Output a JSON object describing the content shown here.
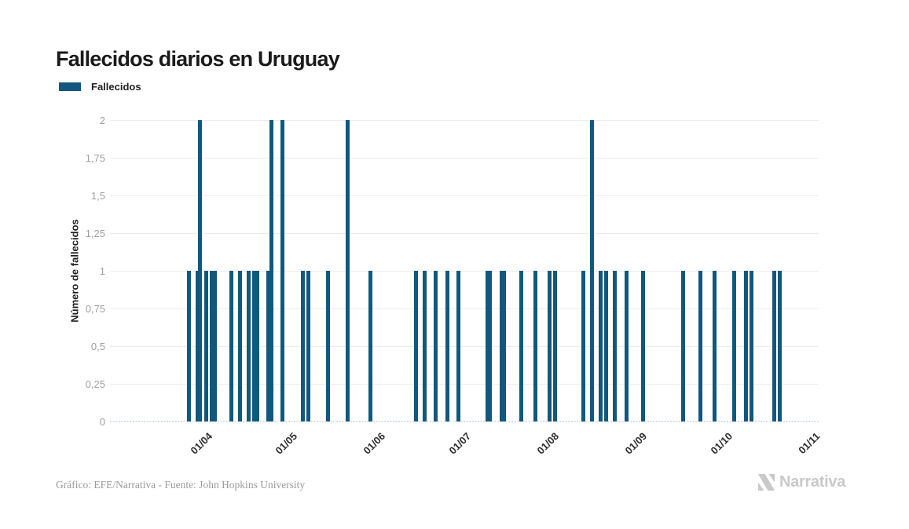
{
  "header": {
    "title": "Fallecidos diarios en Uruguay"
  },
  "legend": {
    "label": "Fallecidos"
  },
  "footer": {
    "credit": "Gráfico: EFE/Narrativa - Fuente: John Hopkins University",
    "brand": "Narrativa"
  },
  "colors": {
    "bar": "#11587e",
    "grid": "#ececec",
    "axis_dash": "#d7dfe5",
    "y_tick_label": "#a0a0a0",
    "x_tick_label": "#2e2e2e",
    "title": "#1a1a1a",
    "brand": "#c9c9c9"
  },
  "chart_data": {
    "type": "bar",
    "title": "Fallecidos diarios en Uruguay",
    "series_name": "Fallecidos",
    "xlabel": "",
    "ylabel": "Número de fallecidos",
    "ylim": [
      0,
      2
    ],
    "ytick_step": 0.25,
    "ytick_labels": [
      "0",
      "0,25",
      "0,5",
      "0,75",
      "1",
      "1,25",
      "1,5",
      "1,75",
      "2"
    ],
    "grid": true,
    "legend_position": "top-left",
    "xticks": [
      {
        "label": "01/04",
        "date": "2020-04-01"
      },
      {
        "label": "01/05",
        "date": "2020-05-01"
      },
      {
        "label": "01/06",
        "date": "2020-06-01"
      },
      {
        "label": "01/07",
        "date": "2020-07-01"
      },
      {
        "label": "01/08",
        "date": "2020-08-01"
      },
      {
        "label": "01/09",
        "date": "2020-09-01"
      },
      {
        "label": "01/10",
        "date": "2020-10-01"
      },
      {
        "label": "01/11",
        "date": "2020-11-01"
      }
    ],
    "points": [
      {
        "date": "2020-03-27",
        "value": 1
      },
      {
        "date": "2020-03-30",
        "value": 1
      },
      {
        "date": "2020-03-31",
        "value": 2
      },
      {
        "date": "2020-04-02",
        "value": 1
      },
      {
        "date": "2020-04-04",
        "value": 1
      },
      {
        "date": "2020-04-05",
        "value": 1
      },
      {
        "date": "2020-04-11",
        "value": 1
      },
      {
        "date": "2020-04-14",
        "value": 1
      },
      {
        "date": "2020-04-17",
        "value": 1
      },
      {
        "date": "2020-04-19",
        "value": 1
      },
      {
        "date": "2020-04-20",
        "value": 1
      },
      {
        "date": "2020-04-24",
        "value": 1
      },
      {
        "date": "2020-04-25",
        "value": 2
      },
      {
        "date": "2020-04-29",
        "value": 2
      },
      {
        "date": "2020-05-06",
        "value": 1
      },
      {
        "date": "2020-05-08",
        "value": 1
      },
      {
        "date": "2020-05-15",
        "value": 1
      },
      {
        "date": "2020-05-22",
        "value": 2
      },
      {
        "date": "2020-05-30",
        "value": 1
      },
      {
        "date": "2020-06-15",
        "value": 1
      },
      {
        "date": "2020-06-18",
        "value": 1
      },
      {
        "date": "2020-06-22",
        "value": 1
      },
      {
        "date": "2020-06-26",
        "value": 1
      },
      {
        "date": "2020-06-30",
        "value": 1
      },
      {
        "date": "2020-07-10",
        "value": 1
      },
      {
        "date": "2020-07-11",
        "value": 1
      },
      {
        "date": "2020-07-15",
        "value": 1
      },
      {
        "date": "2020-07-16",
        "value": 1
      },
      {
        "date": "2020-07-22",
        "value": 1
      },
      {
        "date": "2020-07-27",
        "value": 1
      },
      {
        "date": "2020-08-01",
        "value": 1
      },
      {
        "date": "2020-08-03",
        "value": 1
      },
      {
        "date": "2020-08-13",
        "value": 1
      },
      {
        "date": "2020-08-16",
        "value": 2
      },
      {
        "date": "2020-08-19",
        "value": 1
      },
      {
        "date": "2020-08-21",
        "value": 1
      },
      {
        "date": "2020-08-24",
        "value": 1
      },
      {
        "date": "2020-08-28",
        "value": 1
      },
      {
        "date": "2020-09-03",
        "value": 1
      },
      {
        "date": "2020-09-17",
        "value": 1
      },
      {
        "date": "2020-09-23",
        "value": 1
      },
      {
        "date": "2020-09-28",
        "value": 1
      },
      {
        "date": "2020-10-05",
        "value": 1
      },
      {
        "date": "2020-10-09",
        "value": 1
      },
      {
        "date": "2020-10-11",
        "value": 1
      },
      {
        "date": "2020-10-19",
        "value": 1
      },
      {
        "date": "2020-10-21",
        "value": 1
      }
    ]
  }
}
